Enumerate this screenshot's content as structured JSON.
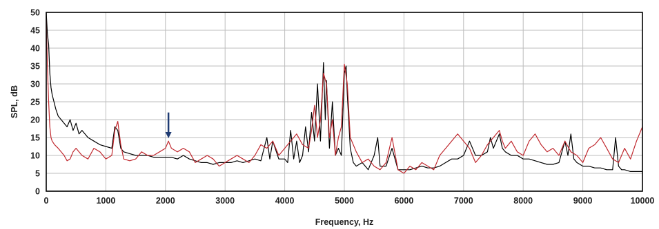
{
  "chart_data": {
    "type": "line",
    "title": "",
    "xlabel": "Frequency, Hz",
    "ylabel": "SPL, dB",
    "xlim": [
      0,
      10000
    ],
    "ylim": [
      0,
      50
    ],
    "x_ticks": [
      0,
      1000,
      2000,
      3000,
      4000,
      5000,
      6000,
      7000,
      8000,
      9000,
      10000
    ],
    "y_ticks": [
      0,
      5,
      10,
      15,
      20,
      25,
      30,
      35,
      40,
      45,
      50
    ],
    "grid": true,
    "legend": "none",
    "annotations": [
      {
        "type": "arrow",
        "color": "#1f3b73",
        "x": 2050,
        "y_from": 22,
        "y_to": 15
      }
    ],
    "series": [
      {
        "color": "#000000",
        "x": [
          0,
          20,
          40,
          60,
          80,
          100,
          130,
          160,
          200,
          250,
          300,
          350,
          400,
          450,
          500,
          550,
          600,
          700,
          800,
          900,
          1000,
          1100,
          1150,
          1200,
          1250,
          1300,
          1400,
          1500,
          1600,
          1700,
          1800,
          1900,
          2000,
          2100,
          2200,
          2300,
          2400,
          2500,
          2600,
          2700,
          2800,
          2900,
          3000,
          3100,
          3200,
          3300,
          3400,
          3500,
          3600,
          3700,
          3750,
          3800,
          3900,
          4000,
          4050,
          4100,
          4150,
          4200,
          4250,
          4300,
          4350,
          4400,
          4450,
          4500,
          4550,
          4600,
          4650,
          4680,
          4700,
          4750,
          4800,
          4850,
          4900,
          4950,
          5000,
          5030,
          5050,
          5100,
          5150,
          5200,
          5300,
          5400,
          5500,
          5560,
          5600,
          5700,
          5800,
          5900,
          6000,
          6100,
          6200,
          6300,
          6400,
          6500,
          6600,
          6700,
          6800,
          6900,
          7000,
          7100,
          7200,
          7300,
          7400,
          7450,
          7500,
          7550,
          7600,
          7650,
          7700,
          7800,
          7900,
          8000,
          8100,
          8200,
          8300,
          8400,
          8500,
          8600,
          8700,
          8750,
          8800,
          8850,
          8900,
          9000,
          9100,
          9200,
          9300,
          9400,
          9500,
          9550,
          9600,
          9650,
          9700,
          9800,
          9900,
          10000
        ],
        "y": [
          50,
          44,
          41,
          33,
          29,
          27,
          25,
          23,
          21,
          20,
          19,
          18,
          20,
          17,
          19,
          16,
          17,
          15,
          14,
          13,
          12.5,
          12,
          18,
          17,
          12,
          11,
          10.5,
          10,
          10,
          10,
          9.5,
          9.5,
          9.5,
          9.5,
          9,
          10,
          9,
          8.5,
          8,
          8,
          7.5,
          8,
          8,
          8,
          8.5,
          8,
          8.5,
          9,
          8.5,
          15,
          9,
          14,
          9,
          9,
          8,
          17,
          9,
          14,
          8,
          10,
          18,
          11,
          22,
          14,
          30,
          14,
          36,
          20,
          31,
          12,
          25,
          10,
          12,
          10,
          33,
          35,
          27,
          12,
          8,
          7,
          8,
          6,
          10,
          15,
          7,
          7,
          12,
          6,
          6,
          6,
          6.5,
          7,
          6.5,
          6.5,
          7,
          8,
          9,
          9,
          10,
          14,
          10,
          10,
          11,
          15,
          12,
          14,
          16,
          12,
          11,
          10,
          10,
          9,
          9,
          8.5,
          8,
          7.5,
          7.5,
          8,
          14,
          10,
          16,
          9,
          8,
          7,
          7,
          6.5,
          6.5,
          6,
          6,
          15,
          7,
          6,
          6,
          5.5,
          5.5,
          5.5
        ]
      },
      {
        "color": "#c0282e",
        "x": [
          0,
          20,
          40,
          60,
          80,
          100,
          140,
          200,
          250,
          300,
          350,
          400,
          450,
          500,
          600,
          700,
          800,
          900,
          1000,
          1100,
          1150,
          1200,
          1250,
          1300,
          1400,
          1500,
          1600,
          1700,
          1800,
          1900,
          2000,
          2050,
          2100,
          2200,
          2300,
          2400,
          2500,
          2600,
          2700,
          2800,
          2900,
          3000,
          3100,
          3200,
          3300,
          3400,
          3500,
          3600,
          3700,
          3800,
          3900,
          4000,
          4100,
          4200,
          4300,
          4400,
          4450,
          4500,
          4550,
          4600,
          4650,
          4700,
          4750,
          4800,
          4850,
          4900,
          4950,
          5000,
          5050,
          5100,
          5200,
          5300,
          5400,
          5500,
          5600,
          5700,
          5800,
          5900,
          6000,
          6100,
          6200,
          6300,
          6400,
          6500,
          6600,
          6700,
          6800,
          6900,
          7000,
          7100,
          7200,
          7300,
          7400,
          7500,
          7600,
          7650,
          7700,
          7800,
          7900,
          8000,
          8100,
          8200,
          8300,
          8400,
          8500,
          8600,
          8700,
          8800,
          8900,
          9000,
          9100,
          9200,
          9300,
          9400,
          9500,
          9600,
          9700,
          9800,
          9900,
          10000
        ],
        "y": [
          48,
          35,
          25,
          18,
          15,
          14,
          13,
          12,
          11,
          10,
          8.5,
          9,
          11,
          12,
          10,
          9,
          12,
          11,
          9,
          10,
          17,
          19.5,
          13,
          9,
          8.5,
          9,
          11,
          10,
          10,
          11,
          12,
          14,
          12,
          11,
          12,
          11,
          8,
          9,
          10,
          9,
          7,
          8,
          9,
          10,
          9,
          8,
          10,
          13,
          12,
          14,
          10,
          12,
          14,
          16,
          13,
          12,
          17,
          24,
          15,
          20,
          33,
          30,
          15,
          20,
          10,
          15,
          18,
          35.5,
          30,
          15,
          11,
          8,
          9,
          7,
          6,
          8,
          15,
          6,
          5,
          7,
          6,
          8,
          7,
          6,
          10,
          12,
          14,
          16,
          14,
          12,
          8,
          10,
          13,
          15,
          17,
          14,
          12,
          14,
          11,
          10,
          14,
          16,
          13,
          11,
          12,
          10,
          14,
          11,
          10,
          8,
          12,
          13,
          15,
          12,
          9,
          8,
          12,
          9,
          14,
          18
        ]
      }
    ]
  }
}
